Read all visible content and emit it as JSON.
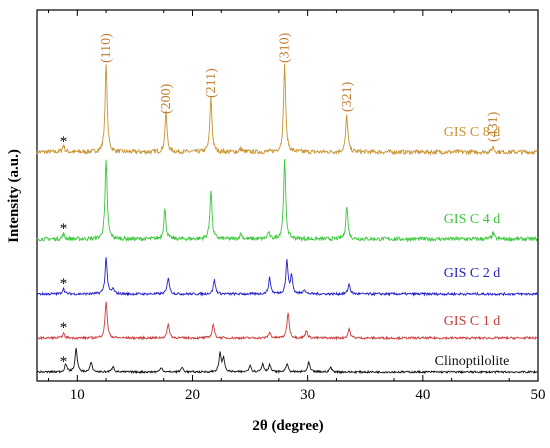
{
  "chart_data": {
    "type": "line",
    "xlabel": "2θ (degree)",
    "ylabel": "Intensity (a.u.)",
    "xlim": [
      6.5,
      50
    ],
    "xticks": [
      10,
      20,
      30,
      40,
      50
    ],
    "grid": false,
    "marker_symbol": "*",
    "marker_x": 8.8,
    "series": [
      {
        "name": "GIS C 8 d",
        "color": "#c8922e",
        "peaks": [
          [
            8.8,
            0.08
          ],
          [
            12.5,
            1.0
          ],
          [
            17.7,
            0.45
          ],
          [
            21.6,
            0.62
          ],
          [
            24.2,
            0.04
          ],
          [
            28.0,
            1.0
          ],
          [
            33.4,
            0.42
          ],
          [
            46.1,
            0.06
          ]
        ],
        "baseline_noise": 0.05
      },
      {
        "name": "GIS C 4 d",
        "color": "#3ac83a",
        "peaks": [
          [
            8.8,
            0.06
          ],
          [
            12.5,
            1.0
          ],
          [
            17.6,
            0.38
          ],
          [
            21.6,
            0.62
          ],
          [
            24.2,
            0.07
          ],
          [
            26.6,
            0.08
          ],
          [
            28.0,
            1.0
          ],
          [
            33.4,
            0.42
          ],
          [
            46.1,
            0.08
          ]
        ],
        "baseline_noise": 0.05
      },
      {
        "name": "GIS C 2 d",
        "color": "#1f1fc8",
        "peaks": [
          [
            8.8,
            0.14
          ],
          [
            12.5,
            0.9
          ],
          [
            13.1,
            0.12
          ],
          [
            17.9,
            0.42
          ],
          [
            21.9,
            0.35
          ],
          [
            26.7,
            0.4
          ],
          [
            28.2,
            0.82
          ],
          [
            28.6,
            0.45
          ],
          [
            29.7,
            0.12
          ],
          [
            33.6,
            0.25
          ]
        ],
        "baseline_noise": 0.06
      },
      {
        "name": "GIS C 1 d",
        "color": "#cc3a3a",
        "peaks": [
          [
            8.8,
            0.12
          ],
          [
            12.5,
            1.0
          ],
          [
            17.9,
            0.38
          ],
          [
            21.8,
            0.38
          ],
          [
            26.7,
            0.15
          ],
          [
            28.3,
            0.7
          ],
          [
            29.9,
            0.2
          ],
          [
            33.6,
            0.25
          ]
        ],
        "baseline_noise": 0.06
      },
      {
        "name": "Clinoptilolite",
        "color": "#111111",
        "peaks": [
          [
            9.0,
            0.35
          ],
          [
            9.9,
            1.0
          ],
          [
            11.2,
            0.4
          ],
          [
            13.1,
            0.25
          ],
          [
            17.3,
            0.2
          ],
          [
            19.1,
            0.2
          ],
          [
            22.4,
            0.75
          ],
          [
            22.7,
            0.55
          ],
          [
            25.0,
            0.3
          ],
          [
            26.1,
            0.35
          ],
          [
            26.7,
            0.3
          ],
          [
            28.2,
            0.35
          ],
          [
            30.1,
            0.4
          ],
          [
            32.0,
            0.2
          ]
        ],
        "baseline_noise": 0.08
      }
    ],
    "peak_labels": [
      {
        "text": "(110)",
        "x": 12.5
      },
      {
        "text": "(200)",
        "x": 17.7
      },
      {
        "text": "(211)",
        "x": 21.6
      },
      {
        "text": "(310)",
        "x": 28.0
      },
      {
        "text": "(321)",
        "x": 33.4
      },
      {
        "text": "(431)",
        "x": 46.1
      }
    ]
  }
}
